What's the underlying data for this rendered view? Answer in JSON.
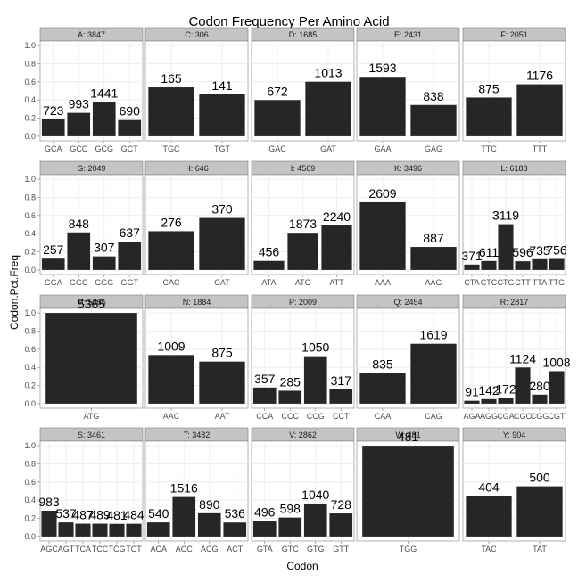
{
  "chart_data": {
    "type": "bar",
    "title": "Codon Frequency Per Amino Acid",
    "xlabel": "Codon",
    "ylabel": "Codon.Pct.Freq",
    "ylim": [
      0,
      1.05
    ],
    "yticks": [
      "0.0",
      "0.2",
      "0.4",
      "0.6",
      "0.8",
      "1.0"
    ],
    "grid": true,
    "facets": [
      {
        "label": "A: 3847",
        "categories": [
          "GCA",
          "GCC",
          "GCG",
          "GCT"
        ],
        "counts": [
          "723",
          "993",
          "1441",
          "690"
        ],
        "values": [
          0.188,
          0.258,
          0.375,
          0.179
        ]
      },
      {
        "label": "C: 306",
        "categories": [
          "TGC",
          "TGT"
        ],
        "counts": [
          "165",
          "141"
        ],
        "values": [
          0.539,
          0.461
        ]
      },
      {
        "label": "D: 1685",
        "categories": [
          "GAC",
          "GAT"
        ],
        "counts": [
          "672",
          "1013"
        ],
        "values": [
          0.399,
          0.601
        ]
      },
      {
        "label": "E: 2431",
        "categories": [
          "GAA",
          "GAG"
        ],
        "counts": [
          "1593",
          "838"
        ],
        "values": [
          0.655,
          0.345
        ]
      },
      {
        "label": "F: 2051",
        "categories": [
          "TTC",
          "TTT"
        ],
        "counts": [
          "875",
          "1176"
        ],
        "values": [
          0.427,
          0.573
        ]
      },
      {
        "label": "G: 2049",
        "categories": [
          "GGA",
          "GGC",
          "GGG",
          "GGT"
        ],
        "counts": [
          "257",
          "848",
          "307",
          "637"
        ],
        "values": [
          0.125,
          0.414,
          0.15,
          0.311
        ]
      },
      {
        "label": "H: 646",
        "categories": [
          "CAC",
          "CAT"
        ],
        "counts": [
          "276",
          "370"
        ],
        "values": [
          0.427,
          0.573
        ]
      },
      {
        "label": "I: 4569",
        "categories": [
          "ATA",
          "ATC",
          "ATT"
        ],
        "counts": [
          "456",
          "1873",
          "2240"
        ],
        "values": [
          0.1,
          0.41,
          0.49
        ]
      },
      {
        "label": "K: 3496",
        "categories": [
          "AAA",
          "AAG"
        ],
        "counts": [
          "2609",
          "887"
        ],
        "values": [
          0.746,
          0.254
        ]
      },
      {
        "label": "L: 6188",
        "categories": [
          "CTA",
          "CTC",
          "CTG",
          "CTT",
          "TTA",
          "TTG"
        ],
        "counts": [
          "371",
          "611",
          "3119",
          "596",
          "735",
          "756"
        ],
        "values": [
          0.06,
          0.099,
          0.504,
          0.096,
          0.119,
          0.122
        ]
      },
      {
        "label": "M: 5365",
        "categories": [
          "ATG"
        ],
        "counts": [
          "5365"
        ],
        "values": [
          1.0
        ]
      },
      {
        "label": "N: 1884",
        "categories": [
          "AAC",
          "AAT"
        ],
        "counts": [
          "1009",
          "875"
        ],
        "values": [
          0.536,
          0.464
        ]
      },
      {
        "label": "P: 2009",
        "categories": [
          "CCA",
          "CCC",
          "CCG",
          "CCT"
        ],
        "counts": [
          "357",
          "285",
          "1050",
          "317"
        ],
        "values": [
          0.178,
          0.142,
          0.523,
          0.158
        ]
      },
      {
        "label": "Q: 2454",
        "categories": [
          "CAA",
          "CAG"
        ],
        "counts": [
          "835",
          "1619"
        ],
        "values": [
          0.34,
          0.66
        ]
      },
      {
        "label": "R: 2817",
        "categories": [
          "AGA",
          "AGG",
          "CGA",
          "CGC",
          "CGG",
          "CGT"
        ],
        "counts": [
          "91",
          "142",
          "172",
          "1124",
          "280",
          "1008"
        ],
        "values": [
          0.032,
          0.05,
          0.061,
          0.399,
          0.099,
          0.358
        ]
      },
      {
        "label": "S: 3461",
        "categories": [
          "AGC",
          "AGT",
          "TCA",
          "TCC",
          "TCG",
          "TCT"
        ],
        "counts": [
          "983",
          "537",
          "487",
          "489",
          "481",
          "484"
        ],
        "values": [
          0.284,
          0.155,
          0.141,
          0.141,
          0.139,
          0.14
        ]
      },
      {
        "label": "T: 3482",
        "categories": [
          "ACA",
          "ACC",
          "ACG",
          "ACT"
        ],
        "counts": [
          "540",
          "1516",
          "890",
          "536"
        ],
        "values": [
          0.155,
          0.435,
          0.256,
          0.154
        ]
      },
      {
        "label": "V: 2862",
        "categories": [
          "GTA",
          "GTC",
          "GTG",
          "GTT"
        ],
        "counts": [
          "496",
          "598",
          "1040",
          "728"
        ],
        "values": [
          0.173,
          0.209,
          0.363,
          0.254
        ]
      },
      {
        "label": "W: 481",
        "categories": [
          "TGG"
        ],
        "counts": [
          "481"
        ],
        "values": [
          1.0
        ]
      },
      {
        "label": "Y: 904",
        "categories": [
          "TAC",
          "TAT"
        ],
        "counts": [
          "404",
          "500"
        ],
        "values": [
          0.447,
          0.553
        ]
      }
    ]
  }
}
